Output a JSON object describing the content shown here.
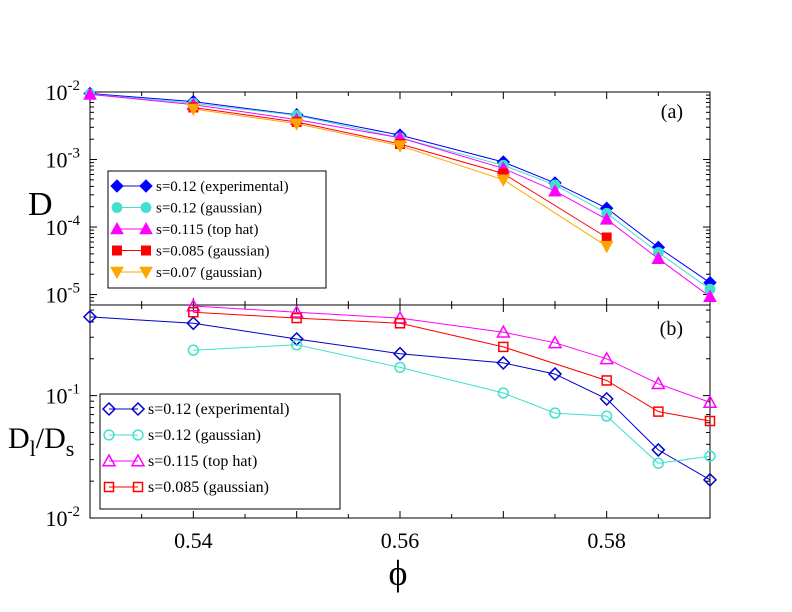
{
  "chart_data": [
    {
      "type": "line",
      "panel": "(a)",
      "yscale": "log",
      "ylabel": "D",
      "xlabel": "",
      "xlim": [
        0.53,
        0.59
      ],
      "ylim": [
        7e-06,
        0.01
      ],
      "yticks": [
        {
          "value": 0.01,
          "mant": "10",
          "exp": "-2"
        },
        {
          "value": 0.001,
          "mant": "10",
          "exp": "-3"
        },
        {
          "value": 0.0001,
          "mant": "10",
          "exp": "-4"
        },
        {
          "value": 1e-05,
          "mant": "10",
          "exp": "-5"
        }
      ],
      "legend_position": "lower-left",
      "series": [
        {
          "name": "s=0.12 (experimental)",
          "color": "#0000ff",
          "marker": "diamond",
          "filled": true,
          "x": [
            0.53,
            0.54,
            0.55,
            0.56,
            0.57,
            0.575,
            0.58,
            0.585,
            0.59
          ],
          "y": [
            0.0095,
            0.0072,
            0.0046,
            0.0023,
            0.00092,
            0.00045,
            0.00019,
            5e-05,
            1.5e-05
          ]
        },
        {
          "name": "s=0.12 (gaussian)",
          "color": "#40e0d0",
          "marker": "circle",
          "filled": true,
          "x": [
            0.53,
            0.54,
            0.55,
            0.56,
            0.57,
            0.575,
            0.58,
            0.585,
            0.59
          ],
          "y": [
            0.0093,
            0.0068,
            0.0045,
            0.0021,
            0.00082,
            0.00042,
            0.00016,
            4.2e-05,
            1.2e-05
          ]
        },
        {
          "name": "s=0.115 (top hat)",
          "color": "#ff00ff",
          "marker": "triangle-up",
          "filled": true,
          "x": [
            0.53,
            0.54,
            0.55,
            0.56,
            0.57,
            0.575,
            0.58,
            0.585,
            0.59
          ],
          "y": [
            0.0092,
            0.0065,
            0.0039,
            0.0021,
            0.00074,
            0.00034,
            0.00013,
            3.4e-05,
            9.3e-06
          ]
        },
        {
          "name": "s=0.085 (gaussian)",
          "color": "#ff0000",
          "marker": "square",
          "filled": true,
          "x": [
            0.54,
            0.55,
            0.56,
            0.57,
            0.58
          ],
          "y": [
            0.0059,
            0.0036,
            0.0017,
            0.00062,
            7e-05
          ]
        },
        {
          "name": "s=0.07 (gaussian)",
          "color": "#ffa500",
          "marker": "triangle-down",
          "filled": true,
          "x": [
            0.54,
            0.55,
            0.56,
            0.57,
            0.58
          ],
          "y": [
            0.0056,
            0.0034,
            0.0016,
            0.0005,
            5.2e-05
          ]
        }
      ]
    },
    {
      "type": "line",
      "panel": "(b)",
      "yscale": "log",
      "ylabel_main": "D",
      "ylabel_sub1": "l",
      "ylabel_sep": "/D",
      "ylabel_sub2": "s",
      "xlabel": "ϕ",
      "xlim": [
        0.53,
        0.59
      ],
      "ylim": [
        0.01,
        0.55
      ],
      "xticks": [
        {
          "value": 0.54,
          "label": "0.54"
        },
        {
          "value": 0.56,
          "label": "0.56"
        },
        {
          "value": 0.58,
          "label": "0.58"
        }
      ],
      "yticks": [
        {
          "value": 0.1,
          "mant": "10",
          "exp": "-1"
        },
        {
          "value": 0.01,
          "mant": "10",
          "exp": "-2"
        }
      ],
      "legend_position": "lower-left",
      "series": [
        {
          "name": "s=0.12 (experimental)",
          "color": "#0000cd",
          "marker": "diamond",
          "filled": false,
          "x": [
            0.53,
            0.54,
            0.55,
            0.56,
            0.57,
            0.575,
            0.58,
            0.585,
            0.59
          ],
          "y": [
            0.44,
            0.39,
            0.29,
            0.22,
            0.185,
            0.15,
            0.094,
            0.036,
            0.0205
          ]
        },
        {
          "name": "s=0.12 (gaussian)",
          "color": "#40e0d0",
          "marker": "circle",
          "filled": false,
          "x": [
            0.54,
            0.55,
            0.56,
            0.57,
            0.575,
            0.58,
            0.585,
            0.59
          ],
          "y": [
            0.235,
            0.26,
            0.17,
            0.105,
            0.072,
            0.068,
            0.028,
            0.032
          ]
        },
        {
          "name": "s=0.115 (top hat)",
          "color": "#ff00ff",
          "marker": "triangle-up",
          "filled": false,
          "x": [
            0.54,
            0.55,
            0.56,
            0.57,
            0.575,
            0.58,
            0.585,
            0.59
          ],
          "y": [
            0.54,
            0.48,
            0.43,
            0.33,
            0.27,
            0.2,
            0.125,
            0.088
          ]
        },
        {
          "name": "s=0.085 (gaussian)",
          "color": "#ff0000",
          "marker": "square",
          "filled": false,
          "x": [
            0.54,
            0.55,
            0.56,
            0.57,
            0.58,
            0.585,
            0.59
          ],
          "y": [
            0.48,
            0.43,
            0.39,
            0.25,
            0.133,
            0.074,
            0.062
          ]
        }
      ]
    }
  ]
}
